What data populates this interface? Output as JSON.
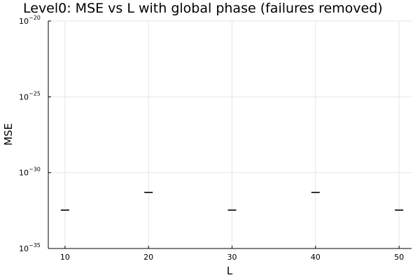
{
  "chart_data": {
    "type": "box",
    "title": "Level0: MSE vs L with global phase (failures removed)",
    "xlabel": "L",
    "ylabel": "MSE",
    "x_ticks": [
      10,
      20,
      30,
      40,
      50
    ],
    "y_scale": "log10",
    "y_ticks": [
      {
        "base": "10",
        "exponent": "−35",
        "value_exp": -35
      },
      {
        "base": "10",
        "exponent": "−30",
        "value_exp": -30
      },
      {
        "base": "10",
        "exponent": "−25",
        "value_exp": -25
      },
      {
        "base": "10",
        "exponent": "−20",
        "value_exp": -20
      }
    ],
    "xlim": [
      8,
      51.5
    ],
    "ylim_exponent": [
      -35,
      -20
    ],
    "grid": true,
    "legend": "none",
    "points": [
      {
        "x": 10,
        "y": 3.4e-33
      },
      {
        "x": 20,
        "y": 5e-32
      },
      {
        "x": 30,
        "y": 3.4e-33
      },
      {
        "x": 40,
        "y": 5e-32
      },
      {
        "x": 50,
        "y": 3.4e-33
      }
    ]
  }
}
